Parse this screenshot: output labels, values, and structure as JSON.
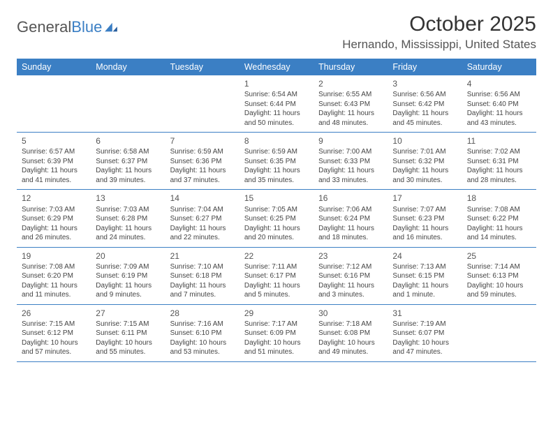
{
  "logo": {
    "text1": "General",
    "text2": "Blue"
  },
  "title": "October 2025",
  "location": "Hernando, Mississippi, United States",
  "colors": {
    "header_bg": "#3b7fc4",
    "border": "#3b7fc4",
    "text": "#444444",
    "title": "#333333"
  },
  "day_headers": [
    "Sunday",
    "Monday",
    "Tuesday",
    "Wednesday",
    "Thursday",
    "Friday",
    "Saturday"
  ],
  "weeks": [
    [
      {
        "day": "",
        "sunrise": "",
        "sunset": "",
        "daylight": ""
      },
      {
        "day": "",
        "sunrise": "",
        "sunset": "",
        "daylight": ""
      },
      {
        "day": "",
        "sunrise": "",
        "sunset": "",
        "daylight": ""
      },
      {
        "day": "1",
        "sunrise": "Sunrise: 6:54 AM",
        "sunset": "Sunset: 6:44 PM",
        "daylight": "Daylight: 11 hours and 50 minutes."
      },
      {
        "day": "2",
        "sunrise": "Sunrise: 6:55 AM",
        "sunset": "Sunset: 6:43 PM",
        "daylight": "Daylight: 11 hours and 48 minutes."
      },
      {
        "day": "3",
        "sunrise": "Sunrise: 6:56 AM",
        "sunset": "Sunset: 6:42 PM",
        "daylight": "Daylight: 11 hours and 45 minutes."
      },
      {
        "day": "4",
        "sunrise": "Sunrise: 6:56 AM",
        "sunset": "Sunset: 6:40 PM",
        "daylight": "Daylight: 11 hours and 43 minutes."
      }
    ],
    [
      {
        "day": "5",
        "sunrise": "Sunrise: 6:57 AM",
        "sunset": "Sunset: 6:39 PM",
        "daylight": "Daylight: 11 hours and 41 minutes."
      },
      {
        "day": "6",
        "sunrise": "Sunrise: 6:58 AM",
        "sunset": "Sunset: 6:37 PM",
        "daylight": "Daylight: 11 hours and 39 minutes."
      },
      {
        "day": "7",
        "sunrise": "Sunrise: 6:59 AM",
        "sunset": "Sunset: 6:36 PM",
        "daylight": "Daylight: 11 hours and 37 minutes."
      },
      {
        "day": "8",
        "sunrise": "Sunrise: 6:59 AM",
        "sunset": "Sunset: 6:35 PM",
        "daylight": "Daylight: 11 hours and 35 minutes."
      },
      {
        "day": "9",
        "sunrise": "Sunrise: 7:00 AM",
        "sunset": "Sunset: 6:33 PM",
        "daylight": "Daylight: 11 hours and 33 minutes."
      },
      {
        "day": "10",
        "sunrise": "Sunrise: 7:01 AM",
        "sunset": "Sunset: 6:32 PM",
        "daylight": "Daylight: 11 hours and 30 minutes."
      },
      {
        "day": "11",
        "sunrise": "Sunrise: 7:02 AM",
        "sunset": "Sunset: 6:31 PM",
        "daylight": "Daylight: 11 hours and 28 minutes."
      }
    ],
    [
      {
        "day": "12",
        "sunrise": "Sunrise: 7:03 AM",
        "sunset": "Sunset: 6:29 PM",
        "daylight": "Daylight: 11 hours and 26 minutes."
      },
      {
        "day": "13",
        "sunrise": "Sunrise: 7:03 AM",
        "sunset": "Sunset: 6:28 PM",
        "daylight": "Daylight: 11 hours and 24 minutes."
      },
      {
        "day": "14",
        "sunrise": "Sunrise: 7:04 AM",
        "sunset": "Sunset: 6:27 PM",
        "daylight": "Daylight: 11 hours and 22 minutes."
      },
      {
        "day": "15",
        "sunrise": "Sunrise: 7:05 AM",
        "sunset": "Sunset: 6:25 PM",
        "daylight": "Daylight: 11 hours and 20 minutes."
      },
      {
        "day": "16",
        "sunrise": "Sunrise: 7:06 AM",
        "sunset": "Sunset: 6:24 PM",
        "daylight": "Daylight: 11 hours and 18 minutes."
      },
      {
        "day": "17",
        "sunrise": "Sunrise: 7:07 AM",
        "sunset": "Sunset: 6:23 PM",
        "daylight": "Daylight: 11 hours and 16 minutes."
      },
      {
        "day": "18",
        "sunrise": "Sunrise: 7:08 AM",
        "sunset": "Sunset: 6:22 PM",
        "daylight": "Daylight: 11 hours and 14 minutes."
      }
    ],
    [
      {
        "day": "19",
        "sunrise": "Sunrise: 7:08 AM",
        "sunset": "Sunset: 6:20 PM",
        "daylight": "Daylight: 11 hours and 11 minutes."
      },
      {
        "day": "20",
        "sunrise": "Sunrise: 7:09 AM",
        "sunset": "Sunset: 6:19 PM",
        "daylight": "Daylight: 11 hours and 9 minutes."
      },
      {
        "day": "21",
        "sunrise": "Sunrise: 7:10 AM",
        "sunset": "Sunset: 6:18 PM",
        "daylight": "Daylight: 11 hours and 7 minutes."
      },
      {
        "day": "22",
        "sunrise": "Sunrise: 7:11 AM",
        "sunset": "Sunset: 6:17 PM",
        "daylight": "Daylight: 11 hours and 5 minutes."
      },
      {
        "day": "23",
        "sunrise": "Sunrise: 7:12 AM",
        "sunset": "Sunset: 6:16 PM",
        "daylight": "Daylight: 11 hours and 3 minutes."
      },
      {
        "day": "24",
        "sunrise": "Sunrise: 7:13 AM",
        "sunset": "Sunset: 6:15 PM",
        "daylight": "Daylight: 11 hours and 1 minute."
      },
      {
        "day": "25",
        "sunrise": "Sunrise: 7:14 AM",
        "sunset": "Sunset: 6:13 PM",
        "daylight": "Daylight: 10 hours and 59 minutes."
      }
    ],
    [
      {
        "day": "26",
        "sunrise": "Sunrise: 7:15 AM",
        "sunset": "Sunset: 6:12 PM",
        "daylight": "Daylight: 10 hours and 57 minutes."
      },
      {
        "day": "27",
        "sunrise": "Sunrise: 7:15 AM",
        "sunset": "Sunset: 6:11 PM",
        "daylight": "Daylight: 10 hours and 55 minutes."
      },
      {
        "day": "28",
        "sunrise": "Sunrise: 7:16 AM",
        "sunset": "Sunset: 6:10 PM",
        "daylight": "Daylight: 10 hours and 53 minutes."
      },
      {
        "day": "29",
        "sunrise": "Sunrise: 7:17 AM",
        "sunset": "Sunset: 6:09 PM",
        "daylight": "Daylight: 10 hours and 51 minutes."
      },
      {
        "day": "30",
        "sunrise": "Sunrise: 7:18 AM",
        "sunset": "Sunset: 6:08 PM",
        "daylight": "Daylight: 10 hours and 49 minutes."
      },
      {
        "day": "31",
        "sunrise": "Sunrise: 7:19 AM",
        "sunset": "Sunset: 6:07 PM",
        "daylight": "Daylight: 10 hours and 47 minutes."
      },
      {
        "day": "",
        "sunrise": "",
        "sunset": "",
        "daylight": ""
      }
    ]
  ]
}
